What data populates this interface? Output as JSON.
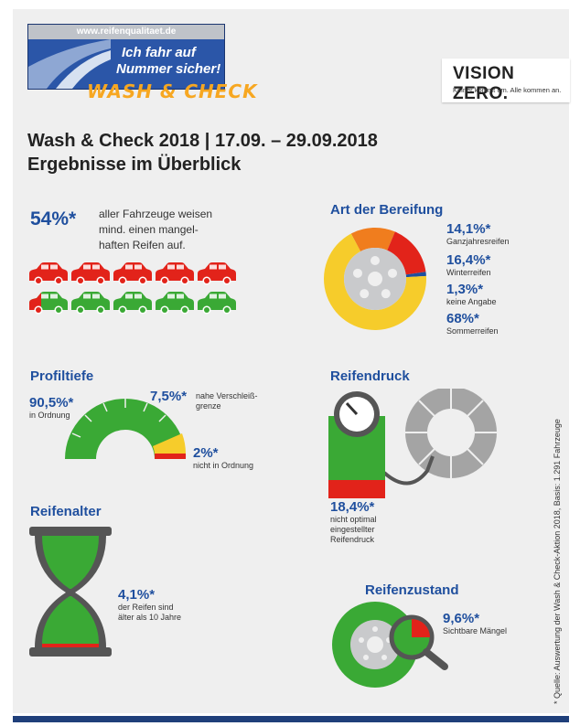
{
  "header": {
    "url": "www.reifenqualitaet.de",
    "slogan_line1": "Ich fahr auf",
    "slogan_line2": "Nummer sicher!",
    "wash_check": "WASH & CHECK",
    "vision_zero": "VISION ZERO.",
    "vision_tagline": "Keiner kommt um. Alle kommen an."
  },
  "title": {
    "line1": "Wash & Check 2018 | 17.09. – 29.09.2018",
    "line2": "Ergebnisse im Überblick"
  },
  "defect": {
    "percent": "54%*",
    "text_line1": "aller Fahrzeuge weisen",
    "text_line2": "mind. einen mangel-",
    "text_line3": "haften Reifen auf."
  },
  "bereifung": {
    "title": "Art der Bereifung",
    "items": [
      {
        "value": "14,1%*",
        "label": "Ganzjahresreifen"
      },
      {
        "value": "16,4%*",
        "label": "Winterreifen"
      },
      {
        "value": "1,3%*",
        "label": "keine Angabe"
      },
      {
        "value": "68%*",
        "label": "Sommerreifen"
      }
    ],
    "colors": {
      "ganzjahres": "#f07d1e",
      "winter": "#e2231a",
      "keine": "#1f4f9e",
      "sommer": "#f6cc2b"
    }
  },
  "profil": {
    "title": "Profiltiefe",
    "ok_value": "90,5%*",
    "ok_label": "in Ordnung",
    "near_value": "7,5%*",
    "near_label1": "nahe Verschleiß-",
    "near_label2": "grenze",
    "bad_value": "2%*",
    "bad_label": "nicht in Ordnung"
  },
  "druck": {
    "title": "Reifendruck",
    "value": "18,4%*",
    "label1": "nicht optimal",
    "label2": "eingestellter",
    "label3": "Reifendruck"
  },
  "alter": {
    "title": "Reifenalter",
    "value": "4,1%*",
    "label1": "der Reifen sind",
    "label2": "älter als 10 Jahre"
  },
  "zustand": {
    "title": "Reifenzustand",
    "value": "9,6%*",
    "label": "Sichtbare Mängel"
  },
  "source": "* Quelle: Auswertung der Wash & Check-Aktion 2018, Basis: 1.291 Fahrzeuge"
}
